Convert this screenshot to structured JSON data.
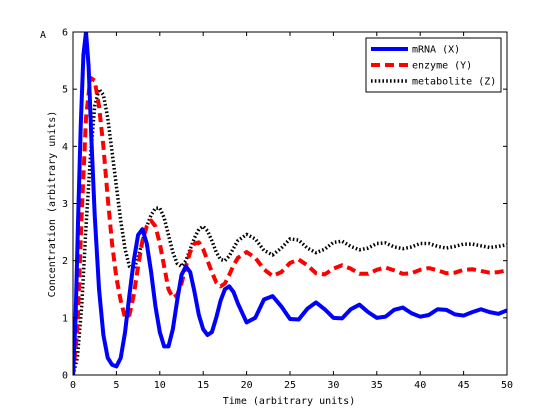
{
  "chart_data": {
    "type": "line",
    "panel_label": "A",
    "title": "",
    "xlabel": "Time (arbitrary units)",
    "ylabel": "Concentration (arbitrary units)",
    "xlim": [
      0,
      50
    ],
    "ylim": [
      0,
      6
    ],
    "xticks": [
      0,
      5,
      10,
      15,
      20,
      25,
      30,
      35,
      40,
      45,
      50
    ],
    "yticks": [
      0,
      1,
      2,
      3,
      4,
      5,
      6
    ],
    "grid": false,
    "legend_position": "top-right",
    "series": [
      {
        "name": "mRNA (X)",
        "color": "#0000ff",
        "style": "solid",
        "x": [
          0,
          0.3,
          0.6,
          0.9,
          1.2,
          1.5,
          1.8,
          2.1,
          2.5,
          3,
          3.5,
          4,
          4.5,
          5,
          5.5,
          6,
          6.5,
          7,
          7.5,
          8,
          8.5,
          9,
          9.5,
          10,
          10.5,
          11,
          11.5,
          12,
          12.5,
          13,
          13.5,
          14,
          14.5,
          15,
          15.5,
          16,
          16.5,
          17,
          17.5,
          18,
          18.5,
          19,
          20,
          21,
          22,
          23,
          24,
          25,
          26,
          27,
          28,
          29,
          30,
          31,
          32,
          33,
          34,
          35,
          36,
          37,
          38,
          39,
          40,
          41,
          42,
          43,
          44,
          45,
          46,
          47,
          48,
          49,
          50
        ],
        "values": [
          0,
          1.0,
          2.8,
          4.4,
          5.6,
          6.0,
          5.4,
          4.2,
          2.8,
          1.5,
          0.7,
          0.3,
          0.18,
          0.15,
          0.3,
          0.75,
          1.4,
          2.0,
          2.45,
          2.55,
          2.3,
          1.8,
          1.2,
          0.75,
          0.5,
          0.5,
          0.8,
          1.3,
          1.75,
          1.9,
          1.8,
          1.45,
          1.05,
          0.8,
          0.7,
          0.75,
          1.0,
          1.3,
          1.5,
          1.55,
          1.45,
          1.25,
          0.92,
          1.0,
          1.32,
          1.38,
          1.2,
          0.98,
          0.97,
          1.16,
          1.27,
          1.15,
          1.0,
          0.99,
          1.15,
          1.23,
          1.1,
          1.0,
          1.02,
          1.14,
          1.18,
          1.08,
          1.02,
          1.05,
          1.15,
          1.14,
          1.06,
          1.04,
          1.1,
          1.15,
          1.1,
          1.07,
          1.13
        ]
      },
      {
        "name": "enzyme (Y)",
        "color": "#ff0000",
        "style": "dashed",
        "x": [
          0,
          0.5,
          1,
          1.5,
          2,
          2.5,
          3,
          3.5,
          4,
          4.5,
          5,
          5.5,
          6,
          6.5,
          7,
          7.5,
          8,
          8.5,
          9,
          9.5,
          10,
          10.5,
          11,
          11.5,
          12,
          12.5,
          13,
          13.5,
          14,
          14.5,
          15,
          15.5,
          16,
          16.5,
          17,
          17.5,
          18,
          18.5,
          19,
          20,
          21,
          22,
          23,
          24,
          25,
          26,
          27,
          28,
          29,
          30,
          31,
          32,
          33,
          34,
          35,
          36,
          37,
          38,
          39,
          40,
          41,
          42,
          43,
          44,
          45,
          46,
          47,
          48,
          49,
          50
        ],
        "values": [
          0,
          0.8,
          2.8,
          4.5,
          5.2,
          5.15,
          4.7,
          4.0,
          3.1,
          2.3,
          1.7,
          1.3,
          1.0,
          1.05,
          1.4,
          1.9,
          2.35,
          2.6,
          2.7,
          2.6,
          2.3,
          1.9,
          1.5,
          1.35,
          1.4,
          1.6,
          1.9,
          2.15,
          2.3,
          2.32,
          2.2,
          2.0,
          1.8,
          1.62,
          1.55,
          1.6,
          1.75,
          1.92,
          2.05,
          2.15,
          2.05,
          1.85,
          1.73,
          1.8,
          1.96,
          2.02,
          1.92,
          1.78,
          1.76,
          1.86,
          1.92,
          1.86,
          1.77,
          1.77,
          1.84,
          1.88,
          1.83,
          1.77,
          1.78,
          1.84,
          1.87,
          1.83,
          1.78,
          1.79,
          1.84,
          1.85,
          1.82,
          1.79,
          1.8,
          1.83
        ]
      },
      {
        "name": "metabolite (Z)",
        "color": "#000000",
        "style": "dotted",
        "x": [
          0,
          0.5,
          1,
          1.5,
          2,
          2.5,
          3,
          3.5,
          4,
          4.5,
          5,
          5.5,
          6,
          6.5,
          7,
          7.5,
          8,
          8.5,
          9,
          9.5,
          10,
          10.5,
          11,
          11.5,
          12,
          12.5,
          13,
          13.5,
          14,
          14.5,
          15,
          15.5,
          16,
          16.5,
          17,
          17.5,
          18,
          18.5,
          19,
          20,
          21,
          22,
          23,
          24,
          25,
          26,
          27,
          28,
          29,
          30,
          31,
          32,
          33,
          34,
          35,
          36,
          37,
          38,
          39,
          40,
          41,
          42,
          43,
          44,
          45,
          46,
          47,
          48,
          49,
          50
        ],
        "values": [
          0,
          0.3,
          1.2,
          2.6,
          3.8,
          4.7,
          5.0,
          4.9,
          4.5,
          3.9,
          3.3,
          2.7,
          2.2,
          1.9,
          1.85,
          2.05,
          2.35,
          2.6,
          2.8,
          2.92,
          2.92,
          2.75,
          2.45,
          2.15,
          1.95,
          1.9,
          2.0,
          2.2,
          2.4,
          2.55,
          2.6,
          2.52,
          2.35,
          2.15,
          2.02,
          2.0,
          2.08,
          2.22,
          2.35,
          2.46,
          2.38,
          2.18,
          2.1,
          2.22,
          2.38,
          2.36,
          2.22,
          2.14,
          2.2,
          2.32,
          2.34,
          2.25,
          2.19,
          2.22,
          2.3,
          2.31,
          2.24,
          2.21,
          2.24,
          2.3,
          2.3,
          2.25,
          2.22,
          2.25,
          2.29,
          2.29,
          2.26,
          2.23,
          2.25,
          2.28
        ]
      }
    ]
  }
}
